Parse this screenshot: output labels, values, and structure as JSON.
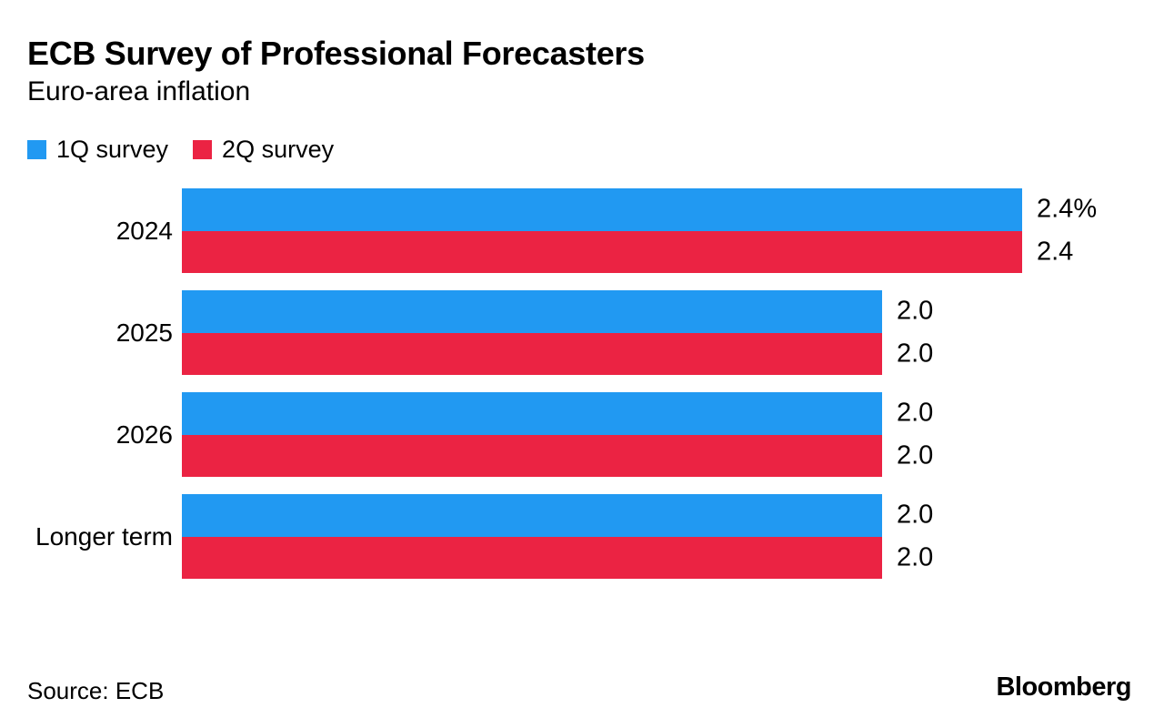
{
  "header": {
    "title": "ECB Survey of Professional Forecasters",
    "subtitle": "Euro-area inflation"
  },
  "legend": {
    "items": [
      {
        "label": "1Q survey",
        "color": "#2199F2"
      },
      {
        "label": "2Q survey",
        "color": "#EB2343"
      }
    ]
  },
  "footer": {
    "source": "Source: ECB",
    "brand": "Bloomberg"
  },
  "colors": {
    "series1": "#2199F2",
    "series2": "#EB2343",
    "text": "#000000",
    "background": "#FFFFFF"
  },
  "chart_data": {
    "type": "bar",
    "orientation": "horizontal",
    "title": "ECB Survey of Professional Forecasters",
    "subtitle": "Euro-area inflation",
    "categories": [
      "2024",
      "2025",
      "2026",
      "Longer term"
    ],
    "series": [
      {
        "name": "1Q survey",
        "color": "#2199F2",
        "values": [
          2.4,
          2.0,
          2.0,
          2.0
        ],
        "value_labels": [
          "2.4%",
          "2.0",
          "2.0",
          "2.0"
        ]
      },
      {
        "name": "2Q survey",
        "color": "#EB2343",
        "values": [
          2.4,
          2.0,
          2.0,
          2.0
        ],
        "value_labels": [
          "2.4",
          "2.0",
          "2.0",
          "2.0"
        ]
      }
    ],
    "xlabel": "",
    "ylabel": "",
    "xlim": [
      0,
      2.4
    ],
    "value_unit": "percent",
    "grid": false,
    "axis_lines": false,
    "legend_position": "top-left",
    "value_labels_position": "right-of-bar",
    "source": "Source: ECB"
  }
}
